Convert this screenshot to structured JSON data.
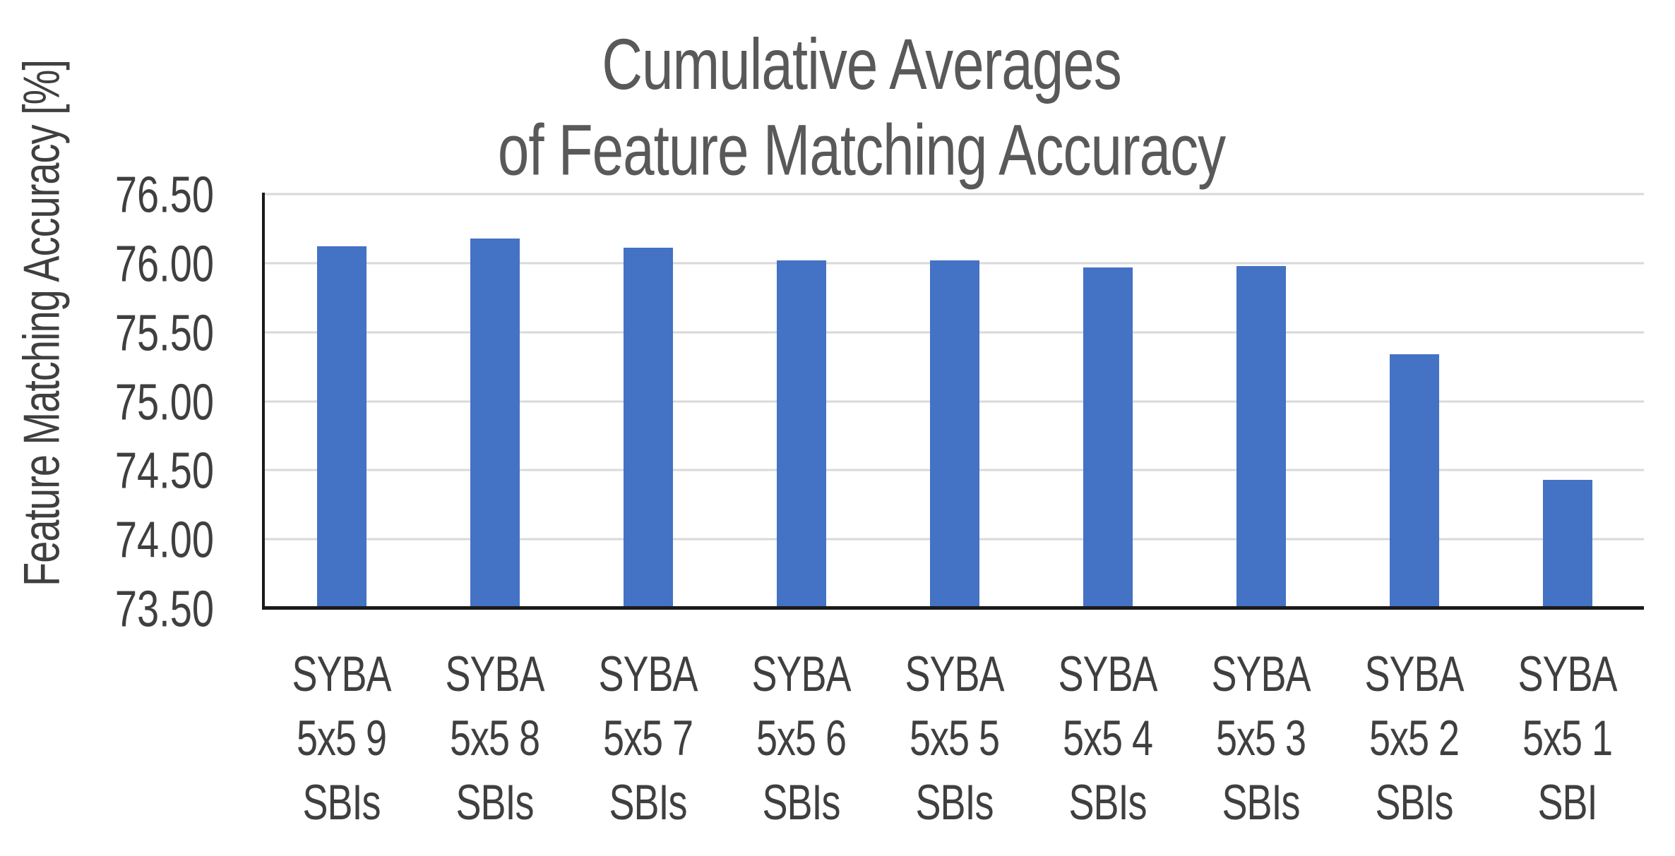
{
  "chart_data": {
    "type": "bar",
    "title": "Cumulative Averages of Feature Matching Accuracy",
    "title_lines": [
      "Cumulative Averages",
      "of Feature Matching Accuracy"
    ],
    "ylabel": "Feature Matching Accuracy [%]",
    "xlabel": "",
    "categories": [
      "SYBA 5x5 9 SBIs",
      "SYBA 5x5 8 SBIs",
      "SYBA 5x5 7 SBIs",
      "SYBA 5x5 6 SBIs",
      "SYBA 5x5 5 SBIs",
      "SYBA 5x5 4 SBIs",
      "SYBA 5x5 3 SBIs",
      "SYBA 5x5 2 SBIs",
      "SYBA 5x5 1 SBI"
    ],
    "category_lines": [
      [
        "SYBA",
        "5x5 9",
        "SBIs"
      ],
      [
        "SYBA",
        "5x5 8",
        "SBIs"
      ],
      [
        "SYBA",
        "5x5 7",
        "SBIs"
      ],
      [
        "SYBA",
        "5x5 6",
        "SBIs"
      ],
      [
        "SYBA",
        "5x5 5",
        "SBIs"
      ],
      [
        "SYBA",
        "5x5 4",
        "SBIs"
      ],
      [
        "SYBA",
        "5x5 3",
        "SBIs"
      ],
      [
        "SYBA",
        "5x5 2",
        "SBIs"
      ],
      [
        "SYBA",
        "5x5 1",
        "SBI"
      ]
    ],
    "values": [
      76.12,
      76.18,
      76.11,
      76.02,
      76.02,
      75.97,
      75.98,
      75.34,
      74.43
    ],
    "ylim": [
      73.5,
      76.5
    ],
    "ytick_step": 0.5,
    "ytick_labels": [
      "76.50",
      "76.00",
      "75.50",
      "75.00",
      "74.50",
      "74.00",
      "73.50"
    ],
    "grid": true,
    "legend": null,
    "colors": {
      "bar": "#4472C4",
      "title_text": "#595959",
      "axis_text": "#3F3F3F",
      "gridline": "#D9D9D9",
      "axis_line": "#1A1A1A",
      "background": "#FFFFFF"
    }
  }
}
